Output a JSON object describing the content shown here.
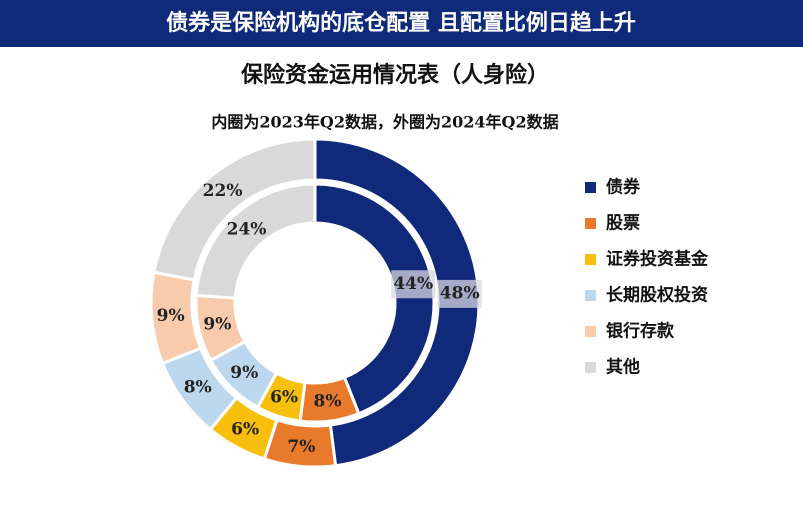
{
  "chart_data": {
    "type": "double-donut",
    "banner": "债券是保险机构的底仓配置 且配置比例日趋上升",
    "title": "保险资金运用情况表（人身险）",
    "subtitle": "内圈为2023年Q2数据，外圈为2024年Q2数据",
    "categories": [
      "债券",
      "股票",
      "证券投资基金",
      "长期股权投资",
      "银行存款",
      "其他"
    ],
    "colors": [
      "#10297a",
      "#e97a2c",
      "#f8bf0c",
      "#bdd7ee",
      "#f8cbad",
      "#d9d9d9"
    ],
    "inner_values": [
      44,
      8,
      6,
      9,
      9,
      24
    ],
    "inner_value_labels": [
      "44%",
      "8%",
      "6%",
      "9%",
      "9%",
      "24%"
    ],
    "outer_values": [
      48,
      7,
      6,
      8,
      9,
      22
    ],
    "outer_value_labels": [
      "48%",
      "7%",
      "6%",
      "8%",
      "9%",
      "22%"
    ]
  }
}
